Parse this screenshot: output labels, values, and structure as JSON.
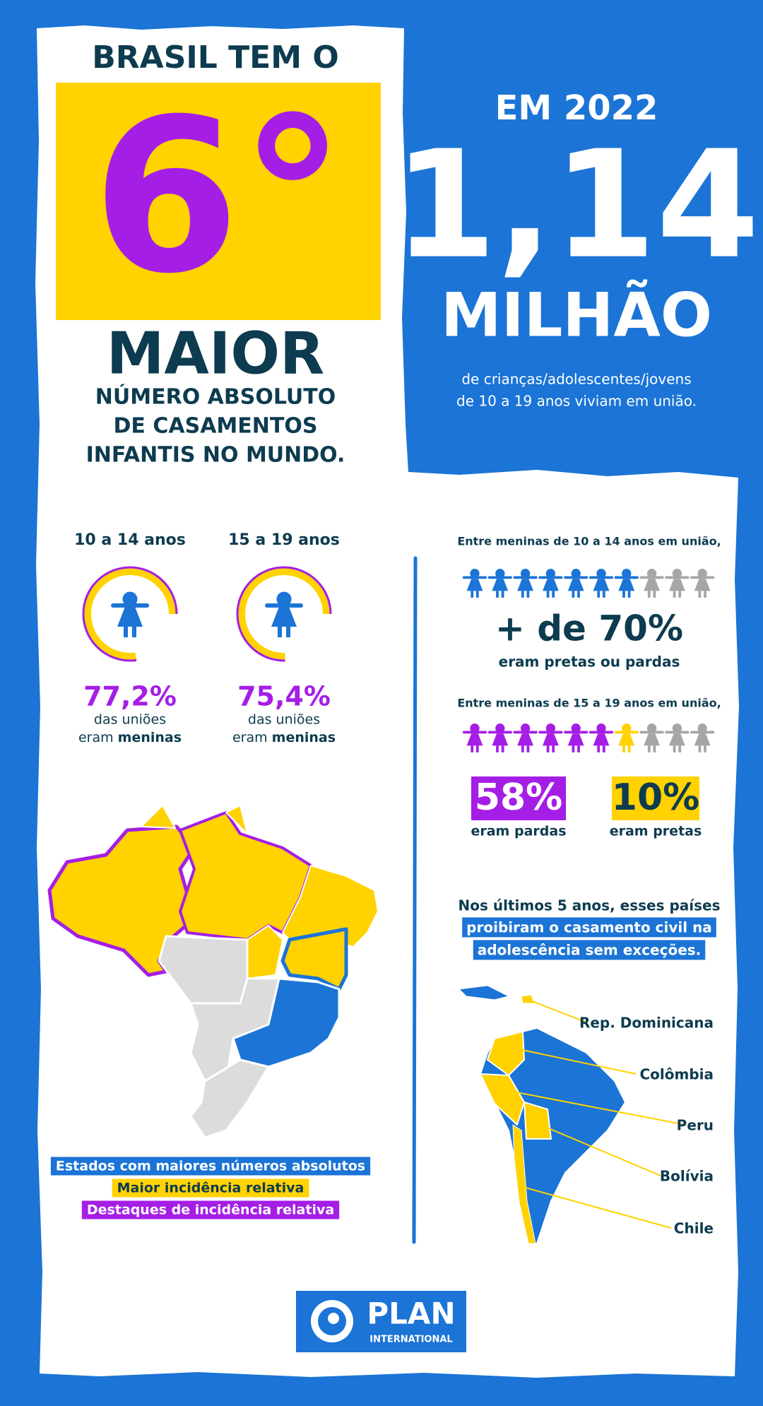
{
  "header": {
    "intro": "BRASIL TEM O",
    "rank": "6°",
    "rank_word": "MAIOR",
    "description": [
      "NÚMERO ABSOLUTO",
      "DE CASAMENTOS",
      "INFANTIS NO MUNDO."
    ]
  },
  "highlight": {
    "year": "EM 2022",
    "number": "1,14",
    "unit": "MILHÃO",
    "description": [
      "de crianças/adolescentes/jovens",
      "de 10 a 19 anos viviam em união."
    ]
  },
  "age_groups": [
    {
      "label": "10 a 14 anos",
      "percent": {
        "value": 77.2,
        "label": "77,2%"
      },
      "note": "das uniões",
      "note_prefix": "eram",
      "note_emphasis": "meninas"
    },
    {
      "label": "15 a 19 anos",
      "percent": {
        "value": 75.4,
        "label": "75,4%"
      },
      "note": "das uniões",
      "note_prefix": "eram",
      "note_emphasis": "meninas"
    }
  ],
  "race": {
    "group_1": {
      "intro": "Entre meninas de 10 a 14 anos em união,",
      "figure": "+ de 70%",
      "caption": "eram pretas ou pardas"
    },
    "group_2": {
      "intro": "Entre meninas de 15 a 19 anos em união,",
      "stats": [
        {
          "label": "58%",
          "caption": "eram pardas"
        },
        {
          "label": "10%",
          "caption": "eram pretas"
        }
      ]
    }
  },
  "map_legend": [
    "Estados com maiores números absolutos",
    "Maior incidência relativa",
    "Destaques de incidência relativa"
  ],
  "countries": {
    "title": "Nos últimos 5 anos, esses países",
    "highlight": [
      "proibiram o casamento civil na",
      "adolescência sem exceções."
    ],
    "items": [
      "Rep. Dominicana",
      "Colômbia",
      "Peru",
      "Bolívia",
      "Chile"
    ]
  },
  "logo": {
    "name": "PLAN",
    "subtitle": "INTERNATIONAL"
  }
}
